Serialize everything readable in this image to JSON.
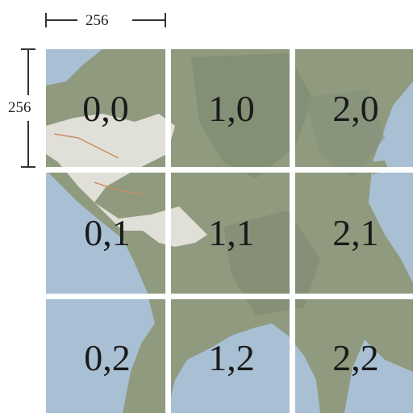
{
  "dimensions": {
    "width_label": "256",
    "height_label": "256"
  },
  "tiles": [
    {
      "label": "0,0"
    },
    {
      "label": "1,0"
    },
    {
      "label": "2,0"
    },
    {
      "label": "0,1"
    },
    {
      "label": "1,1"
    },
    {
      "label": "2,1"
    },
    {
      "label": "0,2"
    },
    {
      "label": "1,2"
    },
    {
      "label": "2,2"
    }
  ],
  "colors": {
    "water": "#a9bfd3",
    "land": "#8f9a7f",
    "urban": "#e8e6df",
    "gap": "#ffffff",
    "dimension_line": "#333333"
  }
}
